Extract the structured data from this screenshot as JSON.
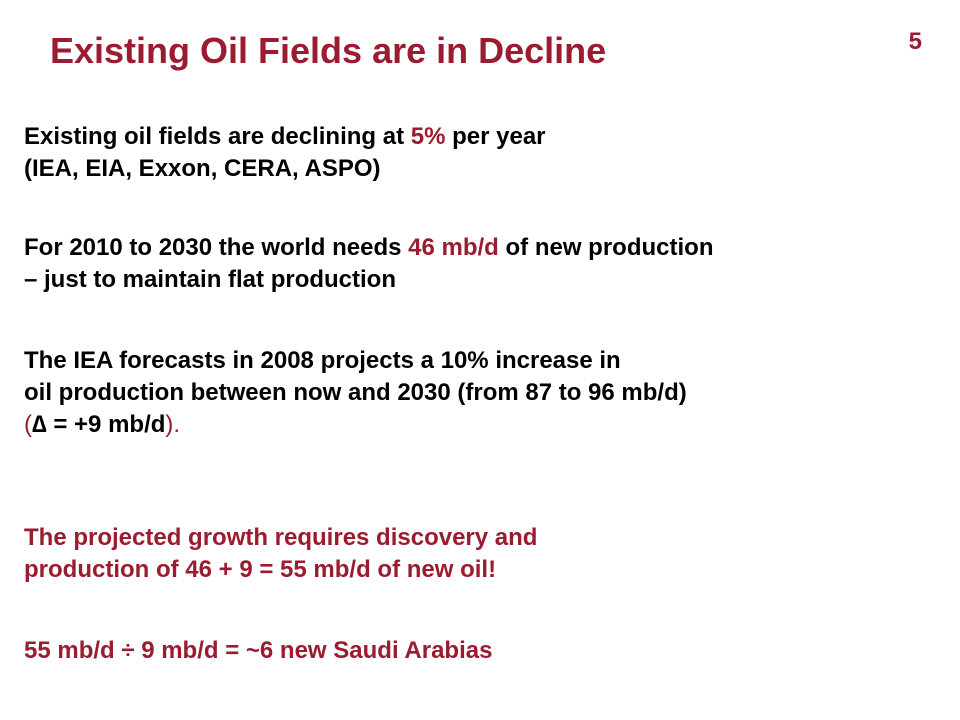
{
  "slide": {
    "title": "Existing Oil Fields are in Decline",
    "page_number": "5",
    "p1": {
      "l1_a": "Existing oil fields are declining at ",
      "l1_b": "5%",
      "l1_c": " per year",
      "l2": "(IEA, EIA, Exxon, CERA, ASPO)"
    },
    "p2": {
      "l1_a": "For 2010 to 2030 the world needs ",
      "l1_b": "46 mb/d",
      "l1_c": " of new production",
      "l2": "–  just to maintain flat production"
    },
    "p3": {
      "l1": "The IEA forecasts in 2008 projects a 10% increase in",
      "l2": "oil production between now and 2030 (from 87 to 96 mb/d)",
      "l3_a": "(",
      "l3_b": "∆ = +9 mb/d",
      "l3_c": ")."
    },
    "p4": {
      "l1": "The projected growth requires discovery and",
      "l2": "production of 46 + 9 = 55 mb/d of new oil!"
    },
    "p5": {
      "l1": "55 mb/d ÷ 9 mb/d =  ~6 new Saudi Arabias"
    }
  },
  "colors": {
    "accent": "#9b1b30",
    "text": "#000000",
    "background": "#ffffff"
  }
}
